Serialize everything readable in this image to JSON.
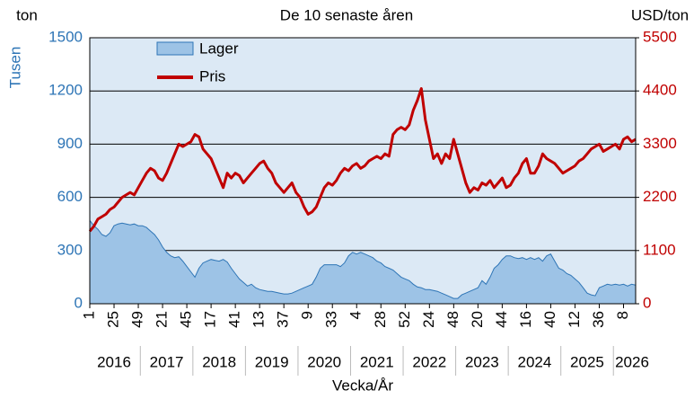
{
  "chart_data": {
    "type": "area_line",
    "title": "De 10 senaste åren",
    "y_unit": "ton",
    "ylabel": "Tusen",
    "y2label": "USD/ton",
    "xlabel": "Vecka/År",
    "categories": [
      "1",
      null,
      null,
      null,
      null,
      null,
      "25",
      null,
      null,
      null,
      null,
      null,
      "49",
      null,
      null,
      null,
      null,
      null,
      "21",
      null,
      null,
      null,
      null,
      null,
      "45",
      null,
      null,
      null,
      null,
      null,
      "17",
      null,
      null,
      null,
      null,
      null,
      "41",
      null,
      null,
      null,
      null,
      null,
      "13",
      null,
      null,
      null,
      null,
      null,
      "37",
      null,
      null,
      null,
      null,
      null,
      "9",
      null,
      null,
      null,
      null,
      null,
      "33",
      null,
      null,
      null,
      null,
      null,
      "4",
      null,
      null,
      null,
      null,
      null,
      "28",
      null,
      null,
      null,
      null,
      null,
      "52",
      null,
      null,
      null,
      null,
      null,
      "24",
      null,
      null,
      null,
      null,
      null,
      "48",
      null,
      null,
      null,
      null,
      null,
      "20",
      null,
      null,
      null,
      null,
      null,
      "44",
      null,
      null,
      null,
      null,
      null,
      "16",
      null,
      null,
      null,
      null,
      null,
      "40",
      null,
      null,
      null,
      null,
      null,
      "12",
      null,
      null,
      null,
      null,
      null,
      "36",
      null,
      null,
      null,
      null,
      null,
      "8",
      null,
      null,
      null
    ],
    "year_labels": [
      "2016",
      "2017",
      "2018",
      "2019",
      "2020",
      "2021",
      "2022",
      "2023",
      "2024",
      "2025",
      "2026"
    ],
    "series": [
      {
        "name": "Lager",
        "color": "#9dc3e6",
        "axis": "y",
        "values": [
          470,
          440,
          420,
          390,
          380,
          400,
          440,
          450,
          455,
          450,
          445,
          450,
          440,
          440,
          430,
          410,
          390,
          360,
          320,
          290,
          270,
          260,
          265,
          240,
          210,
          180,
          150,
          200,
          230,
          240,
          250,
          245,
          240,
          250,
          235,
          200,
          170,
          140,
          120,
          100,
          110,
          90,
          80,
          75,
          70,
          70,
          65,
          60,
          55,
          55,
          60,
          70,
          80,
          90,
          100,
          110,
          150,
          200,
          220,
          220,
          220,
          220,
          210,
          230,
          270,
          290,
          280,
          290,
          280,
          270,
          260,
          240,
          230,
          210,
          200,
          190,
          170,
          150,
          140,
          130,
          110,
          95,
          90,
          80,
          80,
          75,
          70,
          60,
          50,
          40,
          30,
          30,
          50,
          60,
          70,
          80,
          90,
          130,
          110,
          150,
          200,
          220,
          250,
          270,
          270,
          260,
          255,
          260,
          250,
          260,
          250,
          260,
          240,
          270,
          280,
          240,
          200,
          190,
          170,
          160,
          140,
          120,
          90,
          60,
          50,
          45,
          90,
          100,
          110,
          105,
          110,
          105,
          110,
          100,
          110,
          105
        ]
      },
      {
        "name": "Pris",
        "color": "#c00000",
        "axis": "y2",
        "values": [
          1500,
          1600,
          1750,
          1800,
          1850,
          1950,
          2000,
          2100,
          2200,
          2250,
          2300,
          2250,
          2400,
          2550,
          2700,
          2800,
          2750,
          2600,
          2550,
          2700,
          2900,
          3100,
          3300,
          3250,
          3300,
          3350,
          3500,
          3450,
          3200,
          3100,
          3000,
          2800,
          2600,
          2400,
          2700,
          2600,
          2700,
          2650,
          2500,
          2600,
          2700,
          2800,
          2900,
          2950,
          2800,
          2700,
          2500,
          2400,
          2300,
          2400,
          2500,
          2300,
          2200,
          2000,
          1850,
          1900,
          2000,
          2200,
          2400,
          2500,
          2450,
          2550,
          2700,
          2800,
          2750,
          2850,
          2900,
          2800,
          2850,
          2950,
          3000,
          3050,
          3000,
          3100,
          3050,
          3500,
          3600,
          3650,
          3600,
          3700,
          4000,
          4200,
          4450,
          3800,
          3400,
          3000,
          3100,
          2900,
          3100,
          3000,
          3400,
          3100,
          2800,
          2500,
          2300,
          2400,
          2350,
          2500,
          2450,
          2550,
          2400,
          2500,
          2600,
          2400,
          2450,
          2600,
          2700,
          2900,
          3000,
          2700,
          2700,
          2850,
          3100,
          3000,
          2950,
          2900,
          2800,
          2700,
          2750,
          2800,
          2850,
          2950,
          3000,
          3100,
          3200,
          3250,
          3300,
          3150,
          3200,
          3250,
          3300,
          3200,
          3400,
          3450,
          3350,
          3400
        ]
      }
    ],
    "ylim": [
      0,
      1500
    ],
    "yticks": [
      0,
      300,
      600,
      900,
      1200,
      1500
    ],
    "y2lim": [
      0,
      5500
    ],
    "y2ticks": [
      0,
      1100,
      2200,
      3300,
      4400,
      5500
    ],
    "y_color": "#2e75b6",
    "y2_color": "#c00000",
    "grid": true
  }
}
